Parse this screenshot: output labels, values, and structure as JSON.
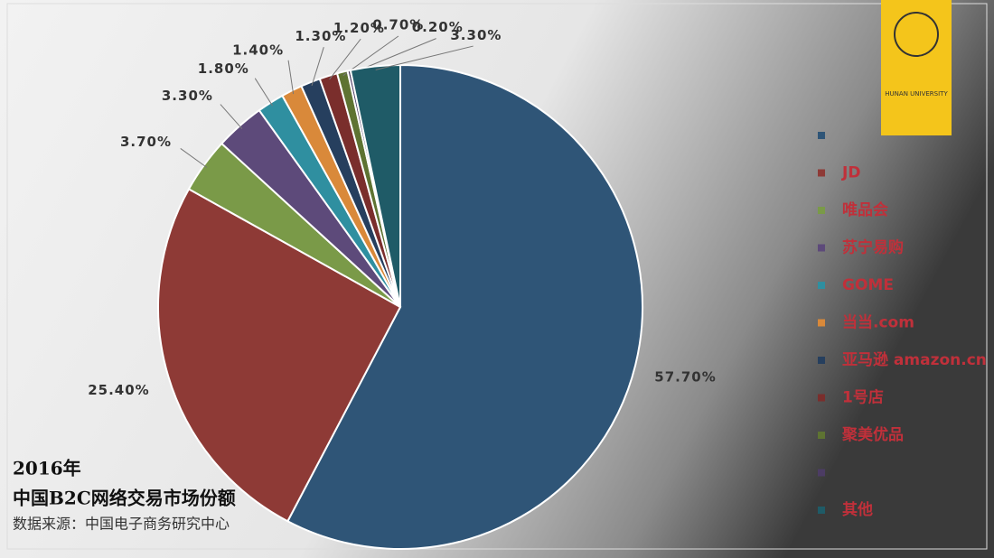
{
  "chart_data": {
    "type": "pie",
    "title": "2016年",
    "subtitle": "中国B2C网络交易市场份额",
    "source": "数据来源：中国电子商务研究中心",
    "watermark": "HUNAN UNIVERSITY",
    "categories": [
      null,
      "JD",
      "唯品会",
      "苏宁易购",
      "GOME",
      "当当.com",
      "亚马逊 amazon.cn",
      "1号店",
      "聚美优品",
      null,
      "其他"
    ],
    "values": [
      57.7,
      25.4,
      3.7,
      3.3,
      1.8,
      1.4,
      1.3,
      1.2,
      0.7,
      0.2,
      3.3
    ],
    "value_labels": [
      "57.70%",
      "25.40%",
      "3.70%",
      "3.30%",
      "1.80%",
      "1.40%",
      "1.30%",
      "1.20%",
      "0.70%",
      "0.20%",
      "3.30%"
    ],
    "colors": [
      "#2f5577",
      "#8e3a36",
      "#7a9a48",
      "#5d4a7a",
      "#2f8fa0",
      "#d9893a",
      "#263f5e",
      "#7a2e2c",
      "#5e7332",
      "#4c3c64",
      "#1f5b67"
    ],
    "legend": "right"
  }
}
